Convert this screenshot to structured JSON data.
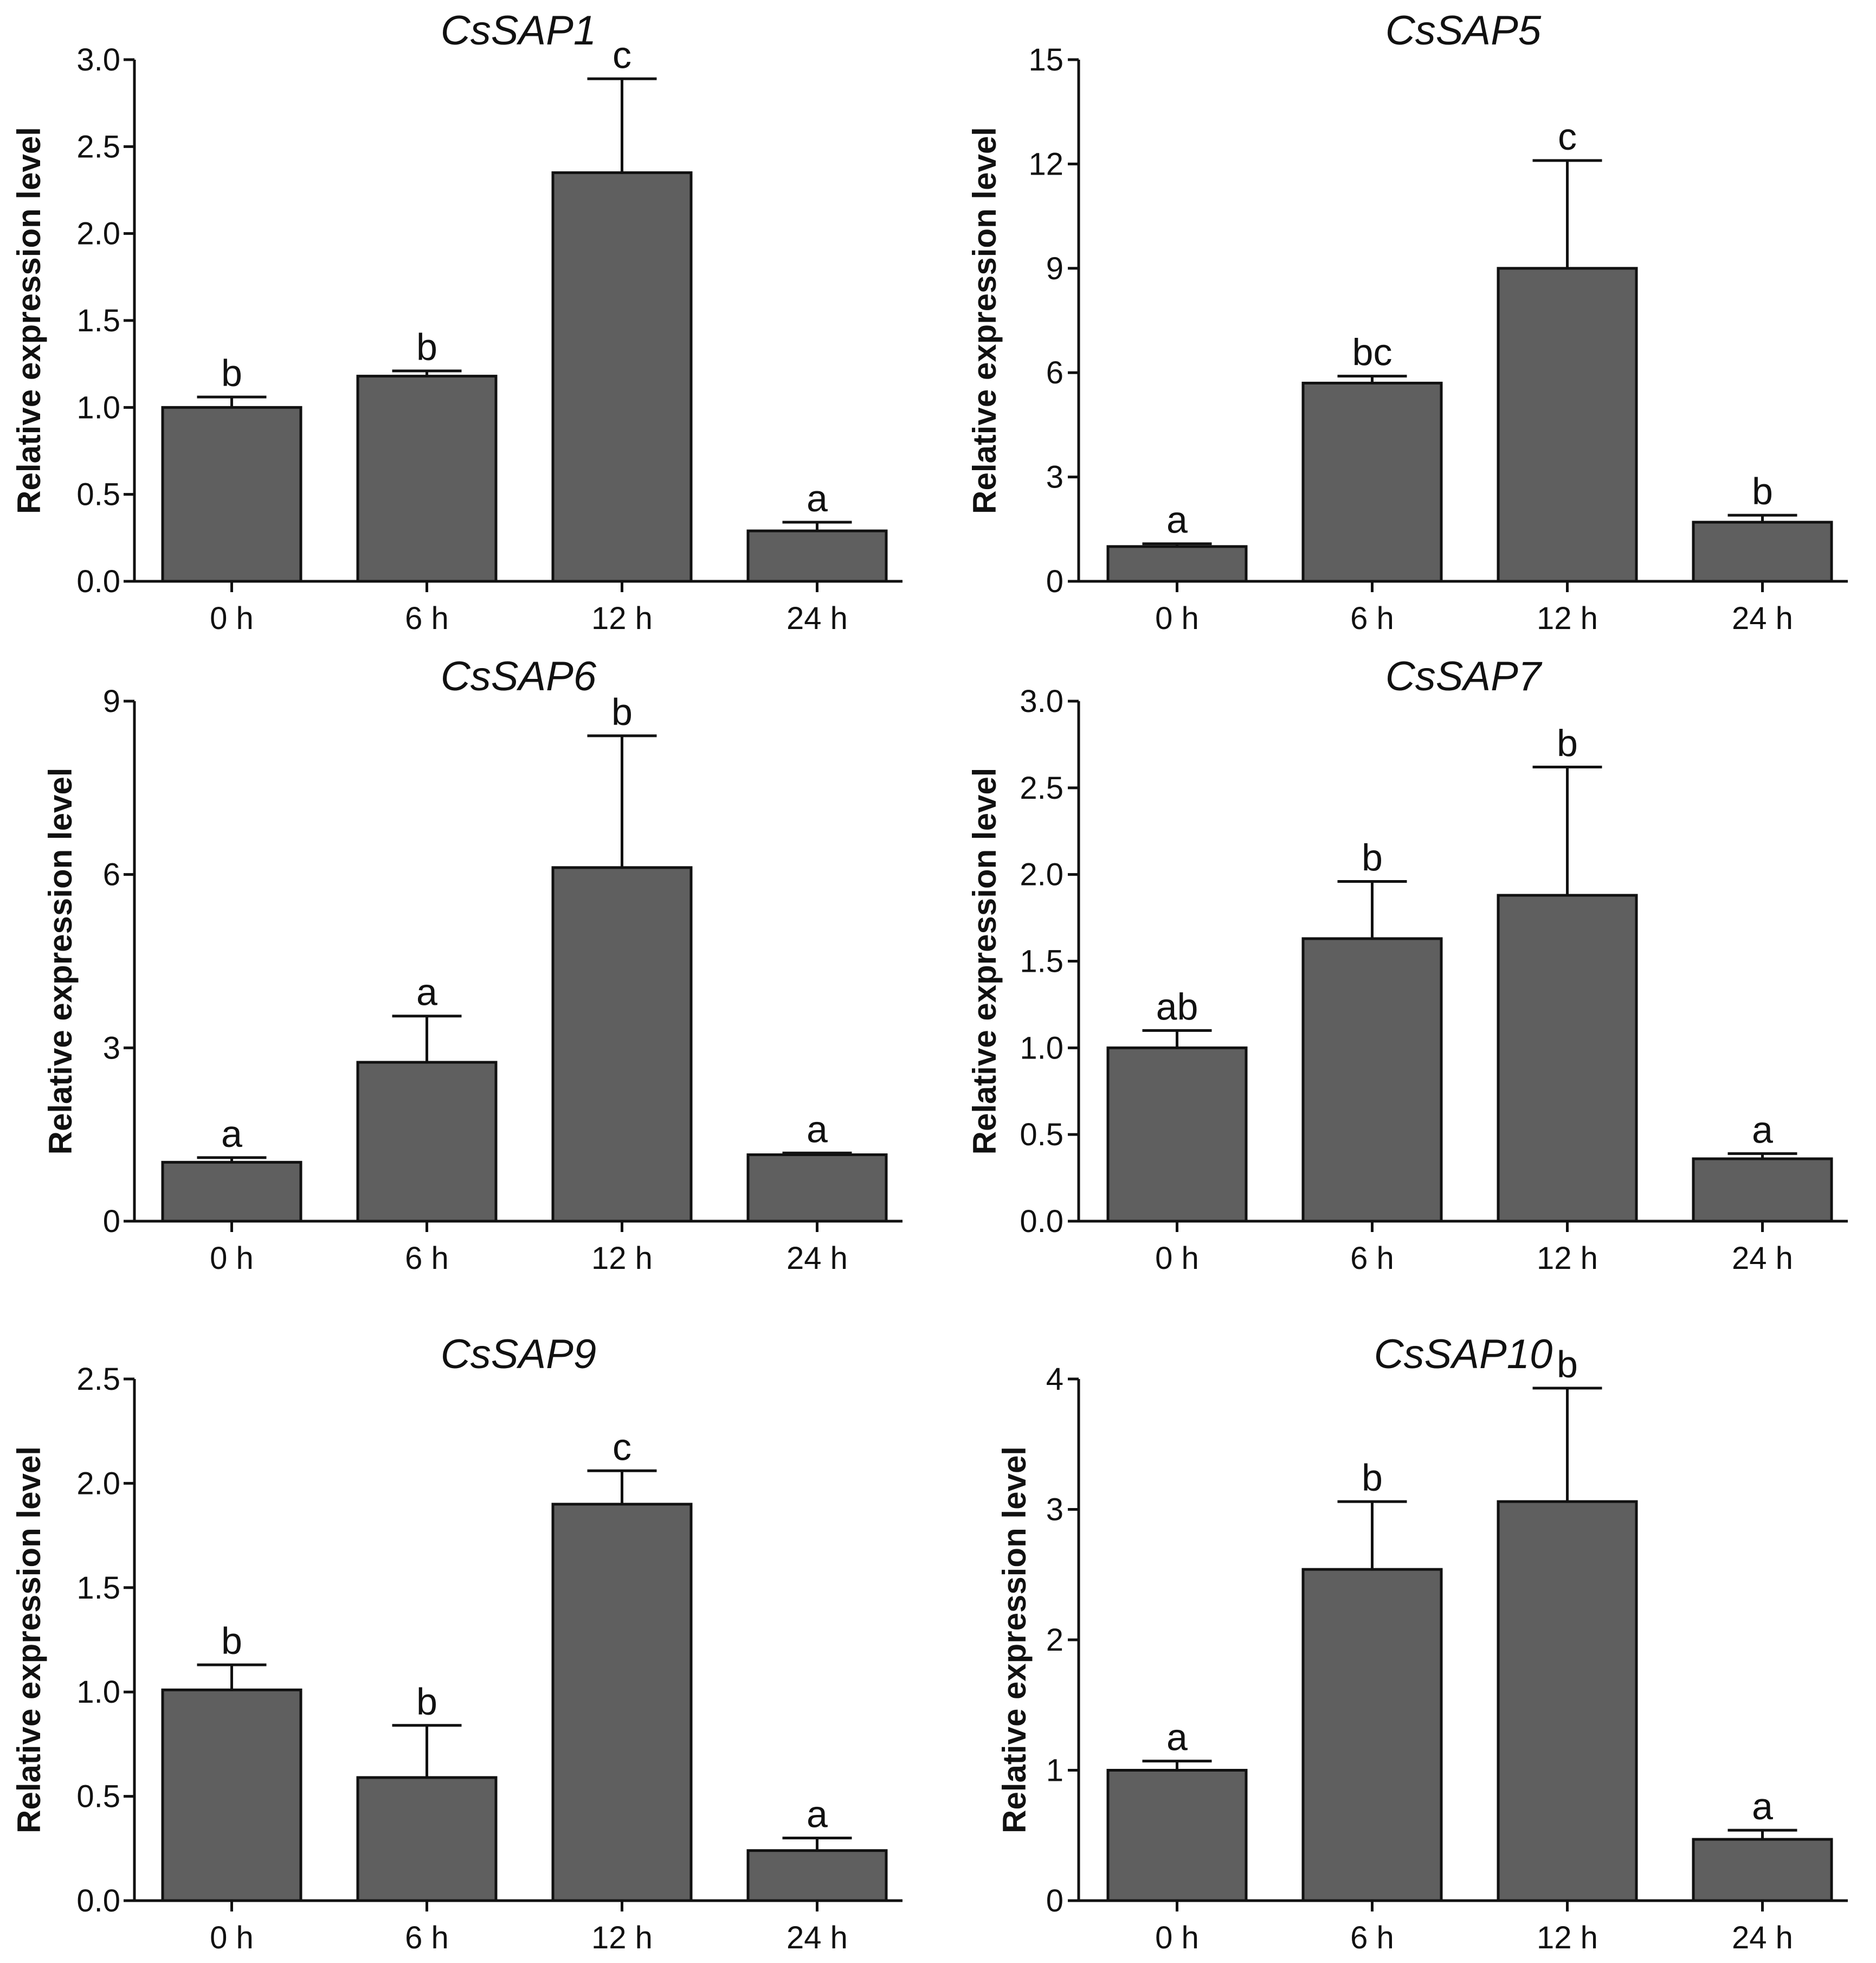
{
  "chart_data": [
    {
      "type": "bar",
      "title": "CsSAP1",
      "ylabel": "Relative expression level",
      "xlabel": "",
      "categories": [
        "0 h",
        "6 h",
        "12 h",
        "24 h"
      ],
      "values": [
        1.0,
        1.18,
        2.35,
        0.29
      ],
      "errors": [
        0.06,
        0.03,
        0.54,
        0.05
      ],
      "letters": [
        "b",
        "b",
        "c",
        "a"
      ],
      "ylim": [
        0,
        3.0
      ],
      "yticks": [
        0,
        0.5,
        1.0,
        1.5,
        2.0,
        2.5,
        3.0
      ],
      "ytick_labels": [
        "0.0",
        "0.5",
        "1.0",
        "1.5",
        "2.0",
        "2.5",
        "3.0"
      ],
      "bar_color": "#5f5f5f"
    },
    {
      "type": "bar",
      "title": "CsSAP5",
      "ylabel": "Relative expression level",
      "xlabel": "",
      "categories": [
        "0 h",
        "6 h",
        "12 h",
        "24 h"
      ],
      "values": [
        1.0,
        5.7,
        9.0,
        1.7
      ],
      "errors": [
        0.08,
        0.2,
        3.1,
        0.2
      ],
      "letters": [
        "a",
        "bc",
        "c",
        "b"
      ],
      "ylim": [
        0,
        15
      ],
      "yticks": [
        0,
        3,
        6,
        9,
        12,
        15
      ],
      "ytick_labels": [
        "0",
        "3",
        "6",
        "9",
        "12",
        "15"
      ],
      "bar_color": "#5f5f5f"
    },
    {
      "type": "bar",
      "title": "CsSAP6",
      "ylabel": "Relative expression level",
      "xlabel": "",
      "categories": [
        "0 h",
        "6 h",
        "12 h",
        "24 h"
      ],
      "values": [
        1.02,
        2.75,
        6.12,
        1.15
      ],
      "errors": [
        0.08,
        0.8,
        2.28,
        0.03
      ],
      "letters": [
        "a",
        "a",
        "b",
        "a"
      ],
      "ylim": [
        0,
        9
      ],
      "yticks": [
        0,
        3,
        6,
        9
      ],
      "ytick_labels": [
        "0",
        "3",
        "6",
        "9"
      ],
      "bar_color": "#5f5f5f"
    },
    {
      "type": "bar",
      "title": "CsSAP7",
      "ylabel": "Relative expression level",
      "xlabel": "",
      "categories": [
        "0 h",
        "6 h",
        "12 h",
        "24 h"
      ],
      "values": [
        1.0,
        1.63,
        1.88,
        0.36
      ],
      "errors": [
        0.1,
        0.33,
        0.74,
        0.03
      ],
      "letters": [
        "ab",
        "b",
        "b",
        "a"
      ],
      "ylim": [
        0,
        3.0
      ],
      "yticks": [
        0,
        0.5,
        1.0,
        1.5,
        2.0,
        2.5,
        3.0
      ],
      "ytick_labels": [
        "0.0",
        "0.5",
        "1.0",
        "1.5",
        "2.0",
        "2.5",
        "3.0"
      ],
      "bar_color": "#5f5f5f"
    },
    {
      "type": "bar",
      "title": "CsSAP9",
      "ylabel": "Relative expression level",
      "xlabel": "",
      "categories": [
        "0 h",
        "6 h",
        "12 h",
        "24 h"
      ],
      "values": [
        1.01,
        0.59,
        1.9,
        0.24
      ],
      "errors": [
        0.12,
        0.25,
        0.16,
        0.06
      ],
      "letters": [
        "b",
        "b",
        "c",
        "a"
      ],
      "ylim": [
        0,
        2.5
      ],
      "yticks": [
        0,
        0.5,
        1.0,
        1.5,
        2.0,
        2.5
      ],
      "ytick_labels": [
        "0.0",
        "0.5",
        "1.0",
        "1.5",
        "2.0",
        "2.5"
      ],
      "bar_color": "#5f5f5f"
    },
    {
      "type": "bar",
      "title": "CsSAP10",
      "ylabel": "Relative expression level",
      "xlabel": "",
      "categories": [
        "0 h",
        "6 h",
        "12 h",
        "24 h"
      ],
      "values": [
        1.0,
        2.54,
        3.06,
        0.47
      ],
      "errors": [
        0.07,
        0.52,
        0.87,
        0.07
      ],
      "letters": [
        "a",
        "b",
        "b",
        "a"
      ],
      "ylim": [
        0,
        4
      ],
      "yticks": [
        0,
        1,
        2,
        3,
        4
      ],
      "ytick_labels": [
        "0",
        "1",
        "2",
        "3",
        "4"
      ],
      "bar_color": "#5f5f5f"
    }
  ]
}
